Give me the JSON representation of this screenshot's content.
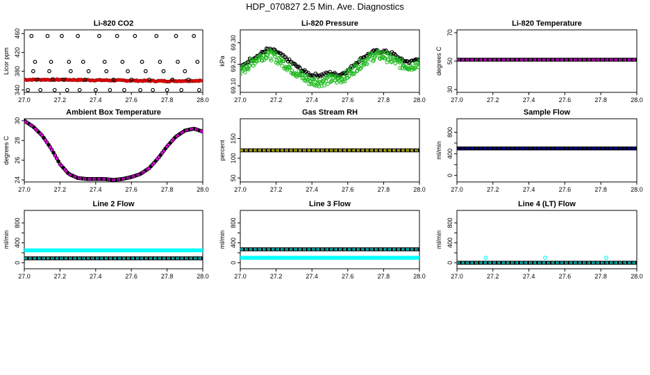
{
  "main_title": "HDP_070827  2.5 Min. Ave. Diagnostics",
  "chart_data": [
    {
      "type": "scatter",
      "title": "Li-820 CO2",
      "xlabel": "",
      "ylabel": "Licor ppm",
      "xlim": [
        27.0,
        28.0
      ],
      "ylim": [
        335,
        468
      ],
      "xticks": [
        27.0,
        27.2,
        27.4,
        27.6,
        27.8,
        28.0
      ],
      "xtick_labels": [
        "27.0",
        "27.2",
        "27.4",
        "27.6",
        "27.8",
        "28.0"
      ],
      "yticks": [
        340,
        380,
        420,
        460
      ],
      "ytick_labels": [
        "340",
        "380",
        "420",
        "460"
      ],
      "series": [
        {
          "name": "co2-main",
          "style": "dense-line",
          "color": "#ff0000",
          "x": [
            27.0,
            27.2,
            27.4,
            27.6,
            27.8,
            27.99
          ],
          "y": [
            362,
            362,
            361,
            360,
            359,
            360
          ]
        },
        {
          "name": "co2-outliers",
          "style": "points",
          "color": "#000000",
          "x": [
            27.02,
            27.09,
            27.17,
            27.24,
            27.31,
            27.4,
            27.48,
            27.56,
            27.65,
            27.72,
            27.8,
            27.88,
            27.98,
            27.07,
            27.16,
            27.22,
            27.34,
            27.5,
            27.6,
            27.7,
            27.83,
            27.92,
            27.06,
            27.15,
            27.25,
            27.33,
            27.45,
            27.55,
            27.66,
            27.76,
            27.86,
            27.97,
            27.04,
            27.13,
            27.21,
            27.3,
            27.42,
            27.52,
            27.62,
            27.74,
            27.85,
            27.95,
            27.05,
            27.14,
            27.26,
            27.36,
            27.46,
            27.58,
            27.68,
            27.78,
            27.9
          ],
          "y": [
            340,
            340,
            340,
            340,
            340,
            340,
            340,
            340,
            340,
            340,
            340,
            340,
            340,
            362,
            362,
            362,
            362,
            362,
            362,
            362,
            362,
            362,
            400,
            400,
            400,
            400,
            400,
            400,
            400,
            400,
            400,
            400,
            455,
            455,
            455,
            455,
            455,
            455,
            455,
            455,
            455,
            455,
            380,
            380,
            380,
            380,
            380,
            380,
            380,
            380,
            380
          ]
        }
      ]
    },
    {
      "type": "scatter",
      "title": "Li-820 Pressure",
      "xlabel": "",
      "ylabel": "kPa",
      "xlim": [
        27.0,
        28.0
      ],
      "ylim": [
        69.07,
        69.36
      ],
      "xticks": [
        27.0,
        27.2,
        27.4,
        27.6,
        27.8,
        28.0
      ],
      "xtick_labels": [
        "27.0",
        "27.2",
        "27.4",
        "27.6",
        "27.8",
        "28.0"
      ],
      "yticks": [
        69.1,
        69.2,
        69.3
      ],
      "ytick_labels": [
        "69.10",
        "69.20",
        "69.30"
      ],
      "series": [
        {
          "name": "pressure-black",
          "style": "trace",
          "color": "#000000",
          "x": [
            27.0,
            27.05,
            27.1,
            27.15,
            27.2,
            27.25,
            27.3,
            27.35,
            27.4,
            27.45,
            27.5,
            27.55,
            27.6,
            27.65,
            27.7,
            27.75,
            27.8,
            27.85,
            27.9,
            27.95,
            28.0
          ],
          "y": [
            69.18,
            69.22,
            69.24,
            69.27,
            69.26,
            69.23,
            69.2,
            69.17,
            69.15,
            69.15,
            69.16,
            69.15,
            69.17,
            69.21,
            69.24,
            69.26,
            69.26,
            69.25,
            69.22,
            69.21,
            69.23
          ]
        },
        {
          "name": "pressure-green",
          "style": "noisy-trace",
          "color": "#22bb22",
          "x": [
            27.0,
            27.05,
            27.1,
            27.15,
            27.2,
            27.25,
            27.3,
            27.35,
            27.4,
            27.45,
            27.5,
            27.55,
            27.6,
            27.65,
            27.7,
            27.75,
            27.8,
            27.85,
            27.9,
            27.95,
            28.0
          ],
          "y": [
            69.16,
            69.2,
            69.23,
            69.25,
            69.23,
            69.2,
            69.17,
            69.14,
            69.12,
            69.12,
            69.13,
            69.13,
            69.15,
            69.19,
            69.22,
            69.24,
            69.24,
            69.22,
            69.2,
            69.19,
            69.21
          ]
        }
      ]
    },
    {
      "type": "scatter",
      "title": "Li-820 Temperature",
      "xlabel": "",
      "ylabel": "degrees C",
      "xlim": [
        27.0,
        28.0
      ],
      "ylim": [
        28,
        72
      ],
      "xticks": [
        27.0,
        27.2,
        27.4,
        27.6,
        27.8,
        28.0
      ],
      "xtick_labels": [
        "27.0",
        "27.2",
        "27.4",
        "27.6",
        "27.8",
        "28.0"
      ],
      "yticks": [
        30,
        50,
        70
      ],
      "ytick_labels": [
        "30",
        "50",
        "70"
      ],
      "series": [
        {
          "name": "licor-temp",
          "style": "flat-points",
          "color": "#ff00ff",
          "edge": "#000000",
          "x": [
            27.0,
            28.0
          ],
          "y": [
            51,
            51
          ]
        }
      ]
    },
    {
      "type": "scatter",
      "title": "Ambient Box Temperature",
      "xlabel": "",
      "ylabel": "degrees C",
      "xlim": [
        27.0,
        28.0
      ],
      "ylim": [
        23.8,
        30.2
      ],
      "xticks": [
        27.0,
        27.2,
        27.4,
        27.6,
        27.8,
        28.0
      ],
      "xtick_labels": [
        "27.0",
        "27.2",
        "27.4",
        "27.6",
        "27.8",
        "28.0"
      ],
      "yticks": [
        24,
        26,
        28,
        30
      ],
      "ytick_labels": [
        "24",
        "26",
        "28",
        "30"
      ],
      "series": [
        {
          "name": "box-temp",
          "style": "curve-points",
          "color": "#ff00ff",
          "edge": "#000000",
          "x": [
            27.0,
            27.05,
            27.1,
            27.15,
            27.2,
            27.25,
            27.3,
            27.35,
            27.4,
            27.45,
            27.5,
            27.55,
            27.6,
            27.65,
            27.7,
            27.75,
            27.8,
            27.85,
            27.9,
            27.95,
            28.0
          ],
          "y": [
            30.0,
            29.4,
            28.5,
            27.2,
            25.6,
            24.6,
            24.2,
            24.1,
            24.1,
            24.1,
            24.0,
            24.1,
            24.3,
            24.6,
            25.2,
            26.2,
            27.4,
            28.4,
            29.0,
            29.2,
            28.9
          ]
        }
      ]
    },
    {
      "type": "scatter",
      "title": "Gas Stream RH",
      "xlabel": "",
      "ylabel": "percent",
      "xlim": [
        27.0,
        28.0
      ],
      "ylim": [
        40,
        200
      ],
      "xticks": [
        27.0,
        27.2,
        27.4,
        27.6,
        27.8,
        28.0
      ],
      "xtick_labels": [
        "27.0",
        "27.2",
        "27.4",
        "27.6",
        "27.8",
        "28.0"
      ],
      "yticks": [
        50,
        100,
        150
      ],
      "ytick_labels": [
        "50",
        "100",
        "150"
      ],
      "series": [
        {
          "name": "rh",
          "style": "flat-points",
          "color": "#ffff00",
          "edge": "#000000",
          "x": [
            27.0,
            28.0
          ],
          "y": [
            120,
            120
          ]
        }
      ]
    },
    {
      "type": "scatter",
      "title": "Sample Flow",
      "xlabel": "",
      "ylabel": "ml/min",
      "xlim": [
        27.0,
        28.0
      ],
      "ylim": [
        -120,
        1050
      ],
      "xticks": [
        27.0,
        27.2,
        27.4,
        27.6,
        27.8,
        28.0
      ],
      "xtick_labels": [
        "27.0",
        "27.2",
        "27.4",
        "27.6",
        "27.8",
        "28.0"
      ],
      "yticks": [
        0,
        200,
        400,
        600,
        800
      ],
      "ytick_labels": [
        "0",
        "",
        "400",
        "",
        "800"
      ],
      "series": [
        {
          "name": "sample-flow",
          "style": "flat-points",
          "color": "#0000cc",
          "edge": "#000000",
          "x": [
            27.0,
            28.0
          ],
          "y": [
            500,
            500
          ]
        }
      ]
    },
    {
      "type": "scatter",
      "title": "Line 2 Flow",
      "xlabel": "",
      "ylabel": "ml/min",
      "xlim": [
        27.0,
        28.0
      ],
      "ylim": [
        -120,
        1050
      ],
      "xticks": [
        27.0,
        27.2,
        27.4,
        27.6,
        27.8,
        28.0
      ],
      "xtick_labels": [
        "27.0",
        "27.2",
        "27.4",
        "27.6",
        "27.8",
        "28.0"
      ],
      "yticks": [
        0,
        200,
        400,
        600,
        800
      ],
      "ytick_labels": [
        "0",
        "",
        "400",
        "",
        "800"
      ],
      "series": [
        {
          "name": "line2-cyan",
          "style": "flat-points",
          "color": "#00ffff",
          "edge": "#00ffff",
          "x": [
            27.0,
            28.0
          ],
          "y": [
            250,
            250
          ]
        },
        {
          "name": "line2-black",
          "style": "flat-points",
          "color": "#00ffff",
          "edge": "#000000",
          "x": [
            27.0,
            28.0
          ],
          "y": [
            90,
            90
          ]
        }
      ]
    },
    {
      "type": "scatter",
      "title": "Line 3 Flow",
      "xlabel": "",
      "ylabel": "ml/min",
      "xlim": [
        27.0,
        28.0
      ],
      "ylim": [
        -120,
        1050
      ],
      "xticks": [
        27.0,
        27.2,
        27.4,
        27.6,
        27.8,
        28.0
      ],
      "xtick_labels": [
        "27.0",
        "27.2",
        "27.4",
        "27.6",
        "27.8",
        "28.0"
      ],
      "yticks": [
        0,
        200,
        400,
        600,
        800
      ],
      "ytick_labels": [
        "0",
        "",
        "400",
        "",
        "800"
      ],
      "series": [
        {
          "name": "line3-black",
          "style": "flat-points",
          "color": "#00ffff",
          "edge": "#000000",
          "x": [
            27.0,
            28.0
          ],
          "y": [
            270,
            270
          ]
        },
        {
          "name": "line3-cyan",
          "style": "flat-points",
          "color": "#00ffff",
          "edge": "#00ffff",
          "x": [
            27.0,
            28.0
          ],
          "y": [
            100,
            100
          ]
        }
      ]
    },
    {
      "type": "scatter",
      "title": "Line 4 (LT) Flow",
      "xlabel": "",
      "ylabel": "ml/min",
      "xlim": [
        27.0,
        28.0
      ],
      "ylim": [
        -120,
        1050
      ],
      "xticks": [
        27.0,
        27.2,
        27.4,
        27.6,
        27.8,
        28.0
      ],
      "xtick_labels": [
        "27.0",
        "27.2",
        "27.4",
        "27.6",
        "27.8",
        "28.0"
      ],
      "yticks": [
        0,
        200,
        400,
        600,
        800
      ],
      "ytick_labels": [
        "0",
        "",
        "400",
        "",
        "800"
      ],
      "series": [
        {
          "name": "line4-black",
          "style": "flat-points",
          "color": "#00ffff",
          "edge": "#000000",
          "x": [
            27.0,
            28.0
          ],
          "y": [
            0,
            0
          ]
        },
        {
          "name": "line4-spikes",
          "style": "points",
          "color": "#00ffff",
          "x": [
            27.16,
            27.49,
            27.83
          ],
          "y": [
            100,
            100,
            100
          ]
        }
      ]
    }
  ]
}
